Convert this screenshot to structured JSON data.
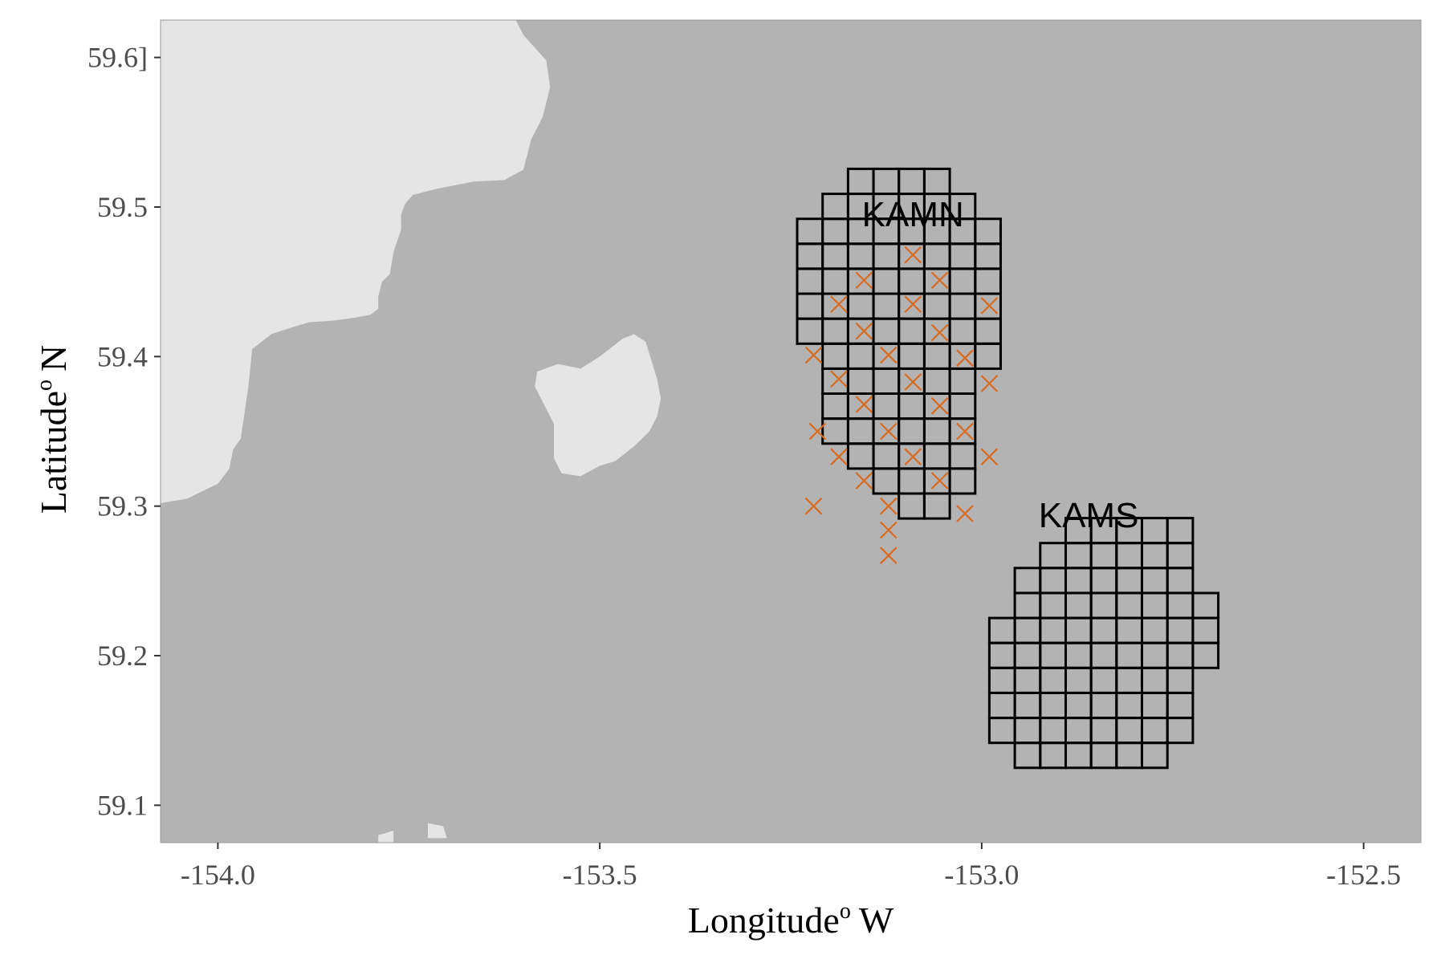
{
  "chart_data": {
    "type": "map",
    "x": {
      "title": "Longitude",
      "title_sup": "o",
      "title_suffix": "W",
      "ticks": [
        -154.0,
        -153.5,
        -153.0,
        -152.5
      ],
      "tick_labels": [
        "-154.0",
        "-153.5",
        "-153.0",
        "-152.5"
      ],
      "range": [
        -154.075,
        -152.425
      ]
    },
    "y": {
      "title": "Latitude",
      "title_sup": "o",
      "title_suffix": "N",
      "ticks": [
        59.1,
        59.2,
        59.3,
        59.4,
        59.5,
        59.6
      ],
      "tick_labels": [
        "59.1",
        "59.2",
        "59.3",
        "59.4",
        "59.5",
        "59.6]"
      ],
      "range": [
        59.075,
        59.625
      ]
    },
    "colors": {
      "water": "#b3b3b3",
      "land": "#e5e5e5",
      "grid": "#000000",
      "marks": "#d96a1e"
    },
    "grid_cell": {
      "lon": 0.0333,
      "lat": 0.0167
    },
    "blocks": [
      {
        "name": "KAMN",
        "label_at": {
          "lon": -153.09,
          "lat": 59.487
        },
        "origin": {
          "lon": -153.2416,
          "lat": 59.2917
        },
        "rows": [
          [
            4,
            6
          ],
          [
            3,
            7
          ],
          [
            2,
            7
          ],
          [
            1,
            7
          ],
          [
            1,
            7
          ],
          [
            1,
            7
          ],
          [
            1,
            8
          ],
          [
            0,
            8
          ],
          [
            0,
            8
          ],
          [
            0,
            8
          ],
          [
            0,
            8
          ],
          [
            0,
            8
          ],
          [
            1,
            7
          ],
          [
            2,
            6
          ]
        ],
        "samples": [
          {
            "lon": -153.09,
            "lat": 59.468
          },
          {
            "lon": -153.154,
            "lat": 59.451
          },
          {
            "lon": -153.055,
            "lat": 59.451
          },
          {
            "lon": -153.187,
            "lat": 59.435
          },
          {
            "lon": -153.09,
            "lat": 59.435
          },
          {
            "lon": -152.99,
            "lat": 59.434
          },
          {
            "lon": -153.154,
            "lat": 59.417
          },
          {
            "lon": -153.055,
            "lat": 59.416
          },
          {
            "lon": -153.22,
            "lat": 59.401
          },
          {
            "lon": -153.122,
            "lat": 59.401
          },
          {
            "lon": -153.022,
            "lat": 59.399
          },
          {
            "lon": -153.187,
            "lat": 59.385
          },
          {
            "lon": -153.09,
            "lat": 59.383
          },
          {
            "lon": -152.99,
            "lat": 59.382
          },
          {
            "lon": -153.154,
            "lat": 59.368
          },
          {
            "lon": -153.055,
            "lat": 59.367
          },
          {
            "lon": -153.215,
            "lat": 59.35
          },
          {
            "lon": -153.122,
            "lat": 59.35
          },
          {
            "lon": -153.022,
            "lat": 59.35
          },
          {
            "lon": -153.187,
            "lat": 59.333
          },
          {
            "lon": -153.09,
            "lat": 59.333
          },
          {
            "lon": -152.99,
            "lat": 59.333
          },
          {
            "lon": -153.154,
            "lat": 59.317
          },
          {
            "lon": -153.055,
            "lat": 59.317
          },
          {
            "lon": -153.22,
            "lat": 59.3
          },
          {
            "lon": -153.122,
            "lat": 59.3
          },
          {
            "lon": -153.022,
            "lat": 59.295
          },
          {
            "lon": -153.122,
            "lat": 59.284
          },
          {
            "lon": -153.122,
            "lat": 59.267
          }
        ]
      },
      {
        "name": "KAMS",
        "label_at": {
          "lon": -152.86,
          "lat": 59.286
        },
        "origin": {
          "lon": -152.99,
          "lat": 59.125
        },
        "rows": [
          [
            1,
            7
          ],
          [
            0,
            8
          ],
          [
            0,
            8
          ],
          [
            0,
            8
          ],
          [
            0,
            9
          ],
          [
            0,
            9
          ],
          [
            1,
            9
          ],
          [
            1,
            8
          ],
          [
            2,
            8
          ],
          [
            3,
            8
          ]
        ],
        "samples": []
      }
    ],
    "land": [
      {
        "name": "mainland",
        "lonlat": [
          [
            -154.075,
            59.625
          ],
          [
            -153.61,
            59.625
          ],
          [
            -153.6,
            59.615
          ],
          [
            -153.57,
            59.598
          ],
          [
            -153.565,
            59.58
          ],
          [
            -153.575,
            59.56
          ],
          [
            -153.59,
            59.545
          ],
          [
            -153.6,
            59.525
          ],
          [
            -153.625,
            59.518
          ],
          [
            -153.665,
            59.517
          ],
          [
            -153.715,
            59.512
          ],
          [
            -153.745,
            59.508
          ],
          [
            -153.755,
            59.502
          ],
          [
            -153.76,
            59.495
          ],
          [
            -153.76,
            59.485
          ],
          [
            -153.77,
            59.47
          ],
          [
            -153.775,
            59.455
          ],
          [
            -153.785,
            59.45
          ],
          [
            -153.79,
            59.44
          ],
          [
            -153.79,
            59.432
          ],
          [
            -153.8,
            59.428
          ],
          [
            -153.82,
            59.426
          ],
          [
            -153.85,
            59.424
          ],
          [
            -153.88,
            59.423
          ],
          [
            -153.9,
            59.42
          ],
          [
            -153.93,
            59.415
          ],
          [
            -153.955,
            59.405
          ],
          [
            -153.96,
            59.38
          ],
          [
            -153.97,
            59.345
          ],
          [
            -153.98,
            59.338
          ],
          [
            -153.985,
            59.325
          ],
          [
            -154.0,
            59.315
          ],
          [
            -154.02,
            59.31
          ],
          [
            -154.04,
            59.305
          ],
          [
            -154.075,
            59.302
          ]
        ]
      },
      {
        "name": "northern-shore",
        "lonlat": [
          [
            -153.77,
            59.527
          ],
          [
            -153.78,
            59.535
          ],
          [
            -153.815,
            59.54
          ],
          [
            -153.84,
            59.54
          ],
          [
            -153.82,
            59.532
          ],
          [
            -153.79,
            59.528
          ]
        ]
      },
      {
        "name": "island",
        "lonlat": [
          [
            -153.582,
            59.39
          ],
          [
            -153.555,
            59.395
          ],
          [
            -153.525,
            59.392
          ],
          [
            -153.5,
            59.4
          ],
          [
            -153.47,
            59.412
          ],
          [
            -153.455,
            59.415
          ],
          [
            -153.44,
            59.41
          ],
          [
            -153.425,
            59.385
          ],
          [
            -153.42,
            59.372
          ],
          [
            -153.425,
            59.36
          ],
          [
            -153.435,
            59.35
          ],
          [
            -153.455,
            59.34
          ],
          [
            -153.48,
            59.33
          ],
          [
            -153.5,
            59.327
          ],
          [
            -153.525,
            59.32
          ],
          [
            -153.55,
            59.322
          ],
          [
            -153.56,
            59.332
          ],
          [
            -153.56,
            59.355
          ],
          [
            -153.575,
            59.37
          ],
          [
            -153.585,
            59.38
          ]
        ]
      },
      {
        "name": "south-islet",
        "lonlat": [
          [
            -153.79,
            59.08
          ],
          [
            -153.77,
            59.083
          ],
          [
            -153.77,
            59.075
          ],
          [
            -153.79,
            59.075
          ]
        ]
      },
      {
        "name": "south-islet-2",
        "lonlat": [
          [
            -153.725,
            59.088
          ],
          [
            -153.705,
            59.086
          ],
          [
            -153.7,
            59.078
          ],
          [
            -153.725,
            59.078
          ]
        ]
      }
    ]
  }
}
